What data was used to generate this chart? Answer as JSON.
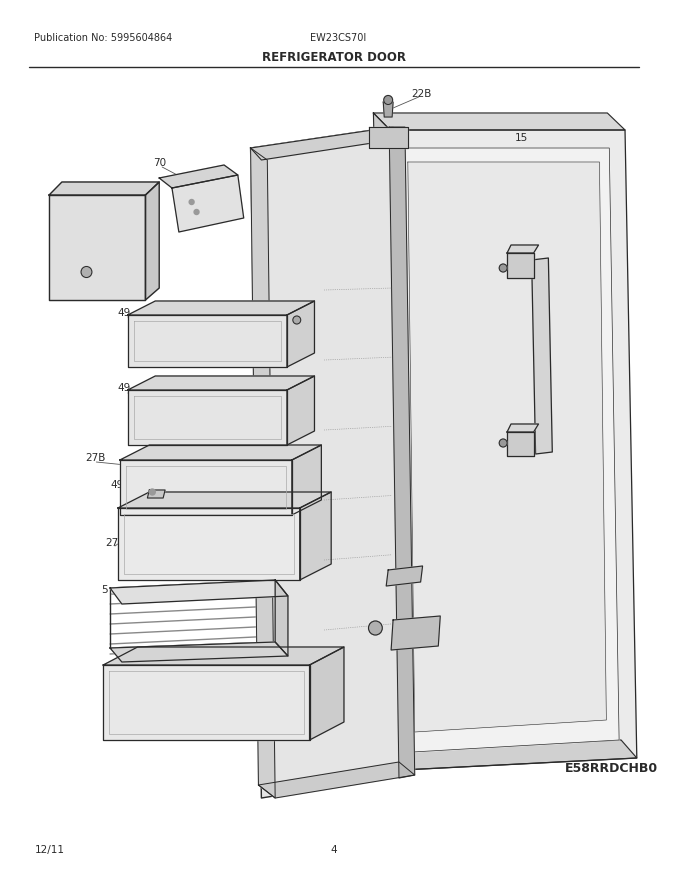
{
  "title": "REFRIGERATOR DOOR",
  "pub_no": "Publication No: 5995604864",
  "model": "EW23CS70I",
  "footer_left": "12/11",
  "footer_center": "4",
  "footer_right": "E58RRDCHB0",
  "bg_color": "#ffffff",
  "lc": "#2a2a2a"
}
